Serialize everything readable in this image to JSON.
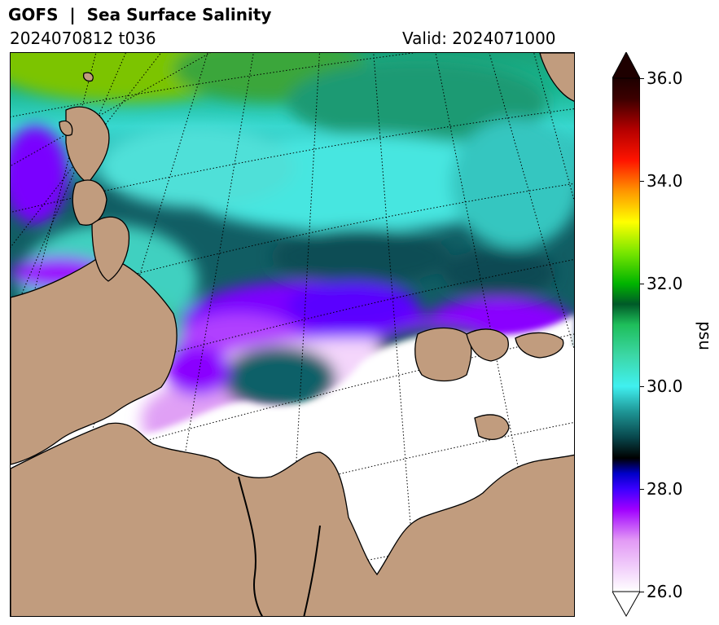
{
  "header": {
    "title": "GOFS  |  Sea Surface Salinity",
    "run": "2024070812 t036",
    "valid": "Valid: 2024071000"
  },
  "map": {
    "land_color": "#c19c7e",
    "coast_color": "#000000",
    "graticule_style": "dotted"
  },
  "colorbar": {
    "label": "psu",
    "min": 26.0,
    "max": 36.0,
    "extend": "both",
    "ticks": [
      "26.0",
      "28.0",
      "30.0",
      "32.0",
      "34.0",
      "36.0"
    ],
    "tick_values": [
      26,
      28,
      30,
      32,
      34,
      36
    ],
    "stops": [
      {
        "v": 26.0,
        "c": "#ffffff"
      },
      {
        "v": 27.0,
        "c": "#e299f5"
      },
      {
        "v": 27.6,
        "c": "#a000ff"
      },
      {
        "v": 28.0,
        "c": "#3b00ff"
      },
      {
        "v": 28.3,
        "c": "#0000c8"
      },
      {
        "v": 28.6,
        "c": "#000000"
      },
      {
        "v": 29.0,
        "c": "#08464b"
      },
      {
        "v": 29.5,
        "c": "#1e9595"
      },
      {
        "v": 30.0,
        "c": "#40f0f0"
      },
      {
        "v": 30.6,
        "c": "#3cd7a5"
      },
      {
        "v": 31.2,
        "c": "#1ebe5a"
      },
      {
        "v": 31.6,
        "c": "#005a28"
      },
      {
        "v": 32.0,
        "c": "#00b400"
      },
      {
        "v": 32.6,
        "c": "#78e600"
      },
      {
        "v": 33.2,
        "c": "#ffff00"
      },
      {
        "v": 33.8,
        "c": "#ff9600"
      },
      {
        "v": 34.4,
        "c": "#ff1400"
      },
      {
        "v": 35.0,
        "c": "#b40000"
      },
      {
        "v": 35.6,
        "c": "#3c0000"
      },
      {
        "v": 36.0,
        "c": "#1e0000"
      }
    ]
  }
}
